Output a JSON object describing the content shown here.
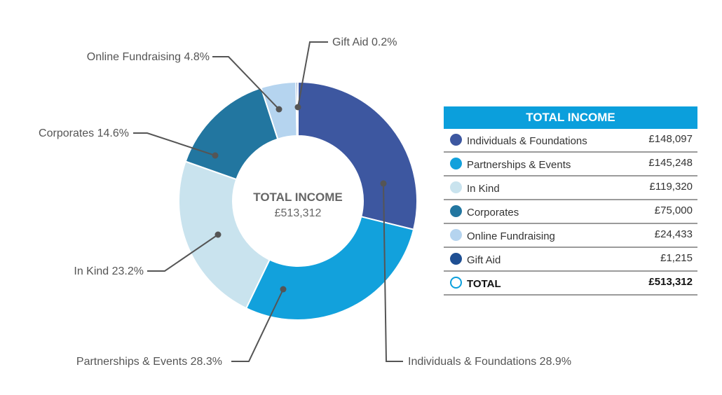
{
  "chart_data": {
    "type": "pie",
    "donut": true,
    "center": {
      "title": "TOTAL INCOME",
      "value": "£513,312"
    },
    "slices": [
      {
        "name": "Individuals & Foundations",
        "amount": 148097,
        "amount_label": "£148,097",
        "percent": 28.9,
        "callout": "Individuals & Foundations 28.9%",
        "color": "#3d57a0"
      },
      {
        "name": "Partnerships & Events",
        "amount": 145248,
        "amount_label": "£145,248",
        "percent": 28.3,
        "callout": "Partnerships & Events 28.3%",
        "color": "#12a1dc"
      },
      {
        "name": "In Kind",
        "amount": 119320,
        "amount_label": "£119,320",
        "percent": 23.2,
        "callout": "In Kind 23.2%",
        "color": "#c9e3ee"
      },
      {
        "name": "Corporates",
        "amount": 75000,
        "amount_label": "£75,000",
        "percent": 14.6,
        "callout": "Corporates 14.6%",
        "color": "#2276a0"
      },
      {
        "name": "Online Fundraising",
        "amount": 24433,
        "amount_label": "£24,433",
        "percent": 4.8,
        "callout": "Online Fundraising 4.8%",
        "color": "#b5d4ef"
      },
      {
        "name": "Gift Aid",
        "amount": 1215,
        "amount_label": "£1,215",
        "percent": 0.2,
        "callout": "Gift Aid 0.2%",
        "color": "#1f4f93"
      }
    ]
  },
  "legend": {
    "title": "TOTAL INCOME",
    "header_color": "#0b9fdc",
    "total": {
      "name": "TOTAL",
      "value": "£513,312"
    }
  }
}
